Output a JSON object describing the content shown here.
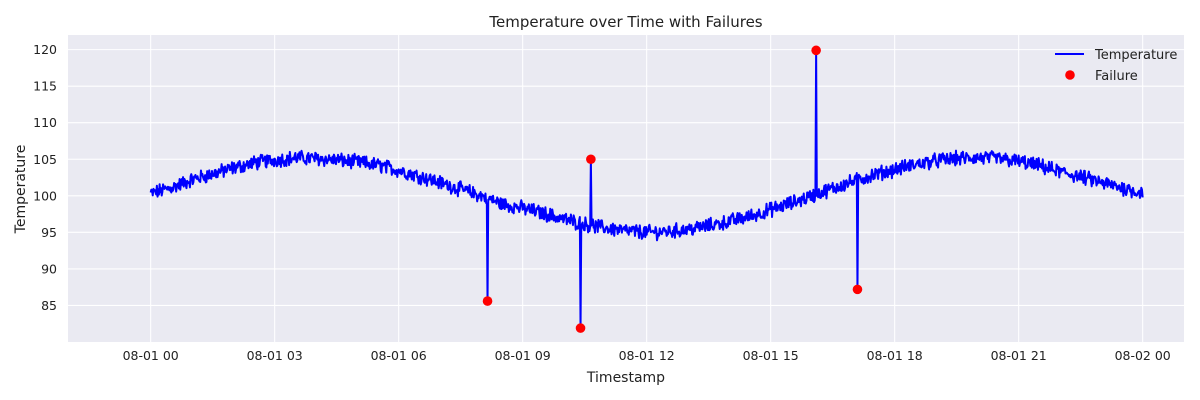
{
  "chart_data": {
    "type": "line",
    "title": "Temperature over Time with Failures",
    "xlabel": "Timestamp",
    "ylabel": "Temperature",
    "x_range": [
      "2024-08-01 00:00",
      "2024-08-02 00:00"
    ],
    "xlim_hours": [
      -2.0,
      25.0
    ],
    "ylim": [
      80,
      122
    ],
    "x_ticks": [
      {
        "hours": 0,
        "label": "08-01 00"
      },
      {
        "hours": 3,
        "label": "08-01 03"
      },
      {
        "hours": 6,
        "label": "08-01 06"
      },
      {
        "hours": 9,
        "label": "08-01 09"
      },
      {
        "hours": 12,
        "label": "08-01 12"
      },
      {
        "hours": 15,
        "label": "08-01 15"
      },
      {
        "hours": 18,
        "label": "08-01 18"
      },
      {
        "hours": 21,
        "label": "08-01 21"
      },
      {
        "hours": 24,
        "label": "08-02 00"
      }
    ],
    "y_ticks": [
      85,
      90,
      95,
      100,
      105,
      110,
      115,
      120
    ],
    "grid": true,
    "legend_position": "top-right",
    "series": [
      {
        "name": "Temperature",
        "kind": "line",
        "color": "#0000ff",
        "x_hours": [
          0,
          0.5,
          1,
          1.5,
          2,
          2.5,
          3,
          3.5,
          4,
          4.5,
          5,
          5.5,
          6,
          6.5,
          7,
          7.5,
          8,
          8.5,
          9,
          9.5,
          10,
          10.5,
          11,
          11.5,
          12,
          12.5,
          13,
          13.5,
          14,
          14.5,
          15,
          15.5,
          16,
          16.5,
          17,
          17.5,
          18,
          18.5,
          19,
          19.5,
          20,
          20.5,
          21,
          21.5,
          22,
          22.5,
          23,
          23.5,
          24
        ],
        "values": [
          100.3,
          101.1,
          102.2,
          103.0,
          103.8,
          104.5,
          104.9,
          105.2,
          105.1,
          104.9,
          104.6,
          104.2,
          103.5,
          102.7,
          101.8,
          100.9,
          100.0,
          98.9,
          98.3,
          97.6,
          96.8,
          96.1,
          95.6,
          95.2,
          95.0,
          95.1,
          95.4,
          95.9,
          96.5,
          97.2,
          98.1,
          99.0,
          100.0,
          101.0,
          102.0,
          102.9,
          103.6,
          104.3,
          104.8,
          105.1,
          105.2,
          105.1,
          104.7,
          104.1,
          103.3,
          102.6,
          101.8,
          101.1,
          100.4
        ]
      },
      {
        "name": "Failure",
        "kind": "scatter",
        "color": "#ff0000",
        "points": [
          {
            "hours": 8.15,
            "value": 85.6
          },
          {
            "hours": 10.4,
            "value": 81.9
          },
          {
            "hours": 10.65,
            "value": 105.0
          },
          {
            "hours": 16.1,
            "value": 119.9
          },
          {
            "hours": 17.1,
            "value": 87.2
          }
        ]
      }
    ]
  },
  "colors": {
    "plot_background": "#eaeaf2",
    "grid": "#ffffff"
  }
}
